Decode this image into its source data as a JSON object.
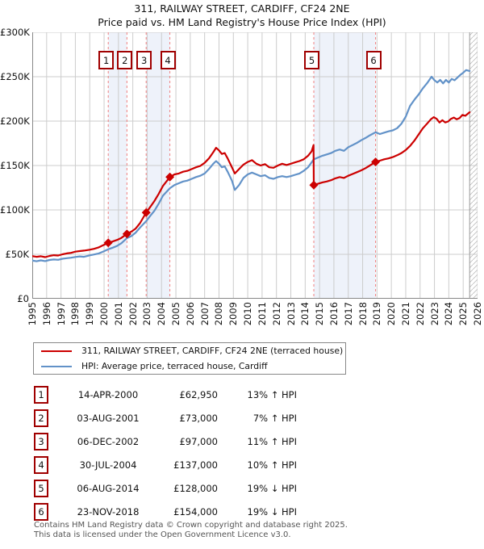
{
  "page": {
    "title": "311, RAILWAY STREET, CARDIFF, CF24 2NE",
    "subtitle": "Price paid vs. HM Land Registry's House Price Index (HPI)"
  },
  "colors": {
    "property": "#cc0000",
    "hpi": "#6292c8",
    "sale_line": "#f08080",
    "band": "#eef2fa",
    "grid": "#cccccc",
    "axis": "#888888",
    "box_border": "#a00000"
  },
  "chart_data": {
    "type": "line",
    "title": "311, RAILWAY STREET, CARDIFF, CF24 2NE",
    "subtitle": "Price paid vs. HM Land Registry's House Price Index (HPI)",
    "xlim": [
      1995,
      2026
    ],
    "ylim": [
      0,
      300000
    ],
    "grid": true,
    "xticks": [
      1995,
      1996,
      1997,
      1998,
      1999,
      2000,
      2001,
      2002,
      2003,
      2004,
      2005,
      2006,
      2007,
      2008,
      2009,
      2010,
      2011,
      2012,
      2013,
      2014,
      2015,
      2016,
      2017,
      2018,
      2019,
      2020,
      2021,
      2022,
      2023,
      2024,
      2025,
      2026
    ],
    "yticks": [
      {
        "value": 0,
        "label": "£0"
      },
      {
        "value": 50000,
        "label": "£50K"
      },
      {
        "value": 100000,
        "label": "£100K"
      },
      {
        "value": 150000,
        "label": "£150K"
      },
      {
        "value": 200000,
        "label": "£200K"
      },
      {
        "value": 250000,
        "label": "£250K"
      },
      {
        "value": 300000,
        "label": "£300K"
      }
    ],
    "future_hatch_from": 2025.45,
    "ownership_bands": [
      [
        2000.29,
        2001.59
      ],
      [
        2002.93,
        2004.58
      ],
      [
        2014.6,
        2018.9
      ]
    ],
    "sales": [
      {
        "n": 1,
        "x": 2000.29,
        "price": 62950,
        "date": "14-APR-2000",
        "price_label": "£62,950",
        "hpi_diff": "13% ↑ HPI"
      },
      {
        "n": 2,
        "x": 2001.59,
        "price": 73000,
        "date": "03-AUG-2001",
        "price_label": "£73,000",
        "hpi_diff": "7% ↑ HPI"
      },
      {
        "n": 3,
        "x": 2002.93,
        "price": 97000,
        "date": "06-DEC-2002",
        "price_label": "£97,000",
        "hpi_diff": "11% ↑ HPI"
      },
      {
        "n": 4,
        "x": 2004.58,
        "price": 137000,
        "date": "30-JUL-2004",
        "price_label": "£137,000",
        "hpi_diff": "10% ↑ HPI"
      },
      {
        "n": 5,
        "x": 2014.6,
        "price": 128000,
        "date": "06-AUG-2014",
        "price_label": "£128,000",
        "hpi_diff": "19% ↓ HPI"
      },
      {
        "n": 6,
        "x": 2018.9,
        "price": 154000,
        "date": "23-NOV-2018",
        "price_label": "£154,000",
        "hpi_diff": "19% ↓ HPI"
      }
    ],
    "series": [
      {
        "name": "311, RAILWAY STREET, CARDIFF, CF24 2NE (terraced house)",
        "color": "#cc0000",
        "points": [
          [
            1995.0,
            48000
          ],
          [
            1995.3,
            47200
          ],
          [
            1995.6,
            47800
          ],
          [
            1995.9,
            46800
          ],
          [
            1996.2,
            48200
          ],
          [
            1996.5,
            49000
          ],
          [
            1996.8,
            48600
          ],
          [
            1997.1,
            50000
          ],
          [
            1997.4,
            51000
          ],
          [
            1997.7,
            51600
          ],
          [
            1998.0,
            53000
          ],
          [
            1998.3,
            53600
          ],
          [
            1998.6,
            54200
          ],
          [
            1999.0,
            55200
          ],
          [
            1999.3,
            56200
          ],
          [
            1999.6,
            57600
          ],
          [
            1999.9,
            60000
          ],
          [
            2000.29,
            62950
          ],
          [
            2000.6,
            64500
          ],
          [
            2000.9,
            66200
          ],
          [
            2001.2,
            68500
          ],
          [
            2001.59,
            73000
          ],
          [
            2001.9,
            75500
          ],
          [
            2002.2,
            79000
          ],
          [
            2002.5,
            85000
          ],
          [
            2002.93,
            97000
          ],
          [
            2003.2,
            103000
          ],
          [
            2003.5,
            110000
          ],
          [
            2003.8,
            118000
          ],
          [
            2004.1,
            127000
          ],
          [
            2004.58,
            137000
          ],
          [
            2004.9,
            140000
          ],
          [
            2005.2,
            141000
          ],
          [
            2005.5,
            143000
          ],
          [
            2005.8,
            144000
          ],
          [
            2006.1,
            146000
          ],
          [
            2006.4,
            148000
          ],
          [
            2006.7,
            149500
          ],
          [
            2007.0,
            153000
          ],
          [
            2007.3,
            158000
          ],
          [
            2007.6,
            165000
          ],
          [
            2007.8,
            170000
          ],
          [
            2008.0,
            167000
          ],
          [
            2008.2,
            163000
          ],
          [
            2008.4,
            164000
          ],
          [
            2008.6,
            158000
          ],
          [
            2008.9,
            148000
          ],
          [
            2009.1,
            141000
          ],
          [
            2009.4,
            146000
          ],
          [
            2009.7,
            151000
          ],
          [
            2010.0,
            154000
          ],
          [
            2010.3,
            156000
          ],
          [
            2010.6,
            152000
          ],
          [
            2010.9,
            150000
          ],
          [
            2011.2,
            151500
          ],
          [
            2011.5,
            148000
          ],
          [
            2011.8,
            147500
          ],
          [
            2012.1,
            150000
          ],
          [
            2012.4,
            152000
          ],
          [
            2012.7,
            150500
          ],
          [
            2013.0,
            152000
          ],
          [
            2013.3,
            153500
          ],
          [
            2013.6,
            155000
          ],
          [
            2013.9,
            157000
          ],
          [
            2014.2,
            161000
          ],
          [
            2014.45,
            166000
          ],
          [
            2014.58,
            173000
          ],
          [
            2014.6,
            128000
          ],
          [
            2014.9,
            129500
          ],
          [
            2015.2,
            131000
          ],
          [
            2015.5,
            132000
          ],
          [
            2015.8,
            133500
          ],
          [
            2016.1,
            135500
          ],
          [
            2016.4,
            137000
          ],
          [
            2016.7,
            136000
          ],
          [
            2017.0,
            138500
          ],
          [
            2017.3,
            140500
          ],
          [
            2017.6,
            142500
          ],
          [
            2017.9,
            144500
          ],
          [
            2018.2,
            147000
          ],
          [
            2018.5,
            150000
          ],
          [
            2018.9,
            154000
          ],
          [
            2019.2,
            155500
          ],
          [
            2019.5,
            157000
          ],
          [
            2019.8,
            158000
          ],
          [
            2020.1,
            159500
          ],
          [
            2020.4,
            161500
          ],
          [
            2020.7,
            164000
          ],
          [
            2021.0,
            167500
          ],
          [
            2021.3,
            172000
          ],
          [
            2021.6,
            178000
          ],
          [
            2021.9,
            185000
          ],
          [
            2022.2,
            192000
          ],
          [
            2022.5,
            197500
          ],
          [
            2022.75,
            202000
          ],
          [
            2022.95,
            204500
          ],
          [
            2023.15,
            202500
          ],
          [
            2023.35,
            198500
          ],
          [
            2023.55,
            201000
          ],
          [
            2023.75,
            198500
          ],
          [
            2023.95,
            199500
          ],
          [
            2024.15,
            202500
          ],
          [
            2024.35,
            204000
          ],
          [
            2024.55,
            202000
          ],
          [
            2024.75,
            203500
          ],
          [
            2024.95,
            207000
          ],
          [
            2025.15,
            206000
          ],
          [
            2025.45,
            210000
          ]
        ]
      },
      {
        "name": "HPI: Average price, terraced house, Cardiff",
        "color": "#6292c8",
        "points": [
          [
            1995.0,
            43000
          ],
          [
            1995.3,
            42200
          ],
          [
            1995.6,
            43200
          ],
          [
            1995.9,
            42400
          ],
          [
            1996.2,
            43600
          ],
          [
            1996.5,
            44200
          ],
          [
            1996.8,
            43800
          ],
          [
            1997.1,
            45000
          ],
          [
            1997.4,
            45600
          ],
          [
            1997.7,
            46200
          ],
          [
            1998.0,
            47000
          ],
          [
            1998.3,
            47600
          ],
          [
            1998.6,
            47200
          ],
          [
            1999.0,
            48800
          ],
          [
            1999.3,
            49800
          ],
          [
            1999.6,
            50800
          ],
          [
            1999.9,
            52800
          ],
          [
            2000.29,
            55700
          ],
          [
            2000.6,
            57500
          ],
          [
            2000.9,
            59500
          ],
          [
            2001.2,
            62500
          ],
          [
            2001.59,
            68200
          ],
          [
            2001.9,
            70500
          ],
          [
            2002.2,
            74500
          ],
          [
            2002.5,
            80000
          ],
          [
            2002.93,
            87400
          ],
          [
            2003.2,
            93000
          ],
          [
            2003.5,
            99000
          ],
          [
            2003.8,
            107000
          ],
          [
            2004.1,
            116000
          ],
          [
            2004.58,
            124500
          ],
          [
            2004.9,
            128000
          ],
          [
            2005.2,
            130000
          ],
          [
            2005.5,
            132000
          ],
          [
            2005.8,
            133000
          ],
          [
            2006.1,
            135000
          ],
          [
            2006.4,
            137000
          ],
          [
            2006.7,
            138500
          ],
          [
            2007.0,
            141000
          ],
          [
            2007.3,
            146000
          ],
          [
            2007.6,
            152000
          ],
          [
            2007.8,
            155000
          ],
          [
            2008.0,
            152000
          ],
          [
            2008.2,
            148000
          ],
          [
            2008.4,
            149000
          ],
          [
            2008.6,
            143000
          ],
          [
            2008.9,
            133000
          ],
          [
            2009.1,
            122500
          ],
          [
            2009.4,
            128000
          ],
          [
            2009.7,
            136000
          ],
          [
            2010.0,
            140000
          ],
          [
            2010.3,
            142000
          ],
          [
            2010.6,
            140000
          ],
          [
            2010.9,
            138000
          ],
          [
            2011.2,
            139000
          ],
          [
            2011.5,
            136000
          ],
          [
            2011.8,
            135000
          ],
          [
            2012.1,
            137000
          ],
          [
            2012.4,
            138000
          ],
          [
            2012.7,
            137000
          ],
          [
            2013.0,
            138000
          ],
          [
            2013.3,
            139500
          ],
          [
            2013.6,
            141000
          ],
          [
            2013.9,
            144000
          ],
          [
            2014.2,
            148000
          ],
          [
            2014.6,
            157000
          ],
          [
            2014.9,
            159000
          ],
          [
            2015.2,
            161000
          ],
          [
            2015.5,
            162500
          ],
          [
            2015.8,
            164000
          ],
          [
            2016.1,
            166500
          ],
          [
            2016.4,
            168000
          ],
          [
            2016.7,
            166500
          ],
          [
            2017.0,
            170500
          ],
          [
            2017.3,
            173000
          ],
          [
            2017.6,
            175500
          ],
          [
            2017.9,
            178500
          ],
          [
            2018.2,
            181000
          ],
          [
            2018.5,
            184000
          ],
          [
            2018.9,
            187500
          ],
          [
            2019.2,
            185500
          ],
          [
            2019.5,
            187000
          ],
          [
            2019.8,
            188500
          ],
          [
            2020.1,
            189500
          ],
          [
            2020.4,
            192000
          ],
          [
            2020.7,
            197000
          ],
          [
            2021.0,
            205000
          ],
          [
            2021.3,
            217000
          ],
          [
            2021.6,
            224000
          ],
          [
            2021.9,
            230000
          ],
          [
            2022.2,
            237000
          ],
          [
            2022.5,
            243000
          ],
          [
            2022.8,
            250000
          ],
          [
            2023.0,
            246000
          ],
          [
            2023.2,
            243500
          ],
          [
            2023.4,
            246500
          ],
          [
            2023.6,
            242500
          ],
          [
            2023.8,
            246500
          ],
          [
            2024.0,
            243500
          ],
          [
            2024.2,
            247500
          ],
          [
            2024.4,
            246000
          ],
          [
            2024.6,
            249000
          ],
          [
            2024.8,
            252000
          ],
          [
            2025.0,
            254500
          ],
          [
            2025.2,
            257500
          ],
          [
            2025.45,
            256500
          ]
        ]
      }
    ]
  },
  "legend": {
    "items": [
      {
        "label": "311, RAILWAY STREET, CARDIFF, CF24 2NE (terraced house)",
        "color": "#cc0000"
      },
      {
        "label": "HPI: Average price, terraced house, Cardiff",
        "color": "#6292c8"
      }
    ]
  },
  "table": {
    "rows": [
      {
        "n": "1",
        "date": "14-APR-2000",
        "price": "£62,950",
        "hpi": "13% ↑ HPI"
      },
      {
        "n": "2",
        "date": "03-AUG-2001",
        "price": "£73,000",
        "hpi": "7% ↑ HPI"
      },
      {
        "n": "3",
        "date": "06-DEC-2002",
        "price": "£97,000",
        "hpi": "11% ↑ HPI"
      },
      {
        "n": "4",
        "date": "30-JUL-2004",
        "price": "£137,000",
        "hpi": "10% ↑ HPI"
      },
      {
        "n": "5",
        "date": "06-AUG-2014",
        "price": "£128,000",
        "hpi": "19% ↓ HPI"
      },
      {
        "n": "6",
        "date": "23-NOV-2018",
        "price": "£154,000",
        "hpi": "19% ↓ HPI"
      }
    ]
  },
  "footer": {
    "line1": "Contains HM Land Registry data © Crown copyright and database right 2025.",
    "line2": "This data is licensed under the Open Government Licence v3.0."
  }
}
